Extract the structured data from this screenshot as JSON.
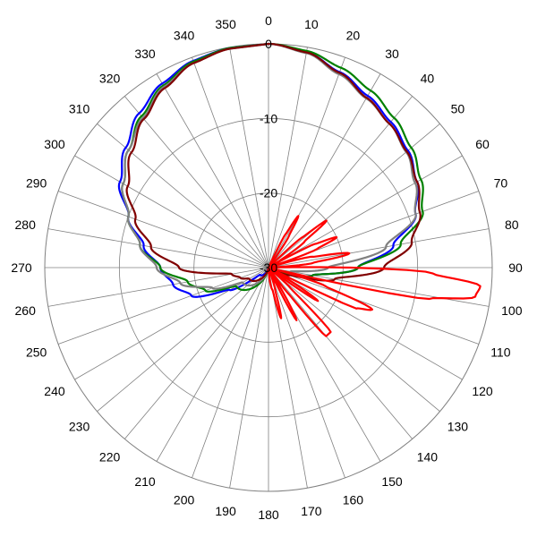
{
  "chart_data": {
    "type": "line",
    "coordinate_system": "polar",
    "angle_labels": [
      "0",
      "10",
      "20",
      "30",
      "40",
      "50",
      "60",
      "70",
      "80",
      "90",
      "100",
      "110",
      "120",
      "130",
      "140",
      "150",
      "160",
      "170",
      "180",
      "190",
      "200",
      "210",
      "220",
      "230",
      "240",
      "250",
      "260",
      "270",
      "280",
      "290",
      "300",
      "310",
      "320",
      "330",
      "340",
      "350"
    ],
    "radial_tick_labels": [
      "0",
      "-10",
      "-20",
      "-30"
    ],
    "radial_range": [
      -30,
      0
    ],
    "grid": true,
    "legend": "none",
    "series": [
      {
        "color": "#0000ff",
        "x": [
          0,
          10,
          20,
          30,
          40,
          50,
          60,
          70,
          80,
          90,
          100,
          110,
          120,
          180,
          230,
          240,
          250,
          260,
          270,
          280,
          290,
          300,
          310,
          320,
          330,
          340,
          350
        ],
        "y": [
          0,
          -0.7,
          -2.1,
          -3.4,
          -4.5,
          -5.6,
          -7,
          -9,
          -13,
          -18,
          -24,
          -28,
          -30,
          -30,
          -28.5,
          -24,
          -19,
          -17,
          -15.5,
          -13,
          -10,
          -7,
          -5,
          -3,
          -1.5,
          -0.5,
          -0.1
        ]
      },
      {
        "color": "#008000",
        "x": [
          0,
          10,
          20,
          30,
          40,
          50,
          60,
          70,
          80,
          90,
          100,
          110,
          120,
          180,
          240,
          250,
          260,
          270,
          280,
          290,
          300,
          310,
          320,
          330,
          340,
          350
        ],
        "y": [
          0,
          -0.5,
          -1.5,
          -2.6,
          -3.8,
          -5,
          -6.4,
          -8,
          -12,
          -18,
          -24,
          -28,
          -30,
          -30,
          -25,
          -21,
          -19,
          -15.5,
          -12.5,
          -10,
          -7.5,
          -5.5,
          -3.5,
          -1.8,
          -0.6,
          -0.1
        ]
      },
      {
        "color": "#808080",
        "x": [
          0,
          10,
          20,
          30,
          40,
          50,
          60,
          70,
          80,
          90,
          100,
          110,
          120,
          180,
          240,
          250,
          260,
          270,
          280,
          290,
          300,
          310,
          320,
          330,
          340,
          350
        ],
        "y": [
          0,
          -0.8,
          -2.4,
          -3.8,
          -4.8,
          -5.9,
          -7.3,
          -9,
          -14,
          -22,
          -27,
          -29,
          -30,
          -30,
          -26,
          -22,
          -18,
          -15,
          -12.5,
          -10,
          -7.5,
          -5.5,
          -3.8,
          -2,
          -0.8,
          -0.2
        ]
      },
      {
        "color": "#800000",
        "x": [
          0,
          10,
          20,
          30,
          40,
          50,
          60,
          70,
          80,
          90,
          100,
          110,
          120,
          180,
          240,
          250,
          260,
          270,
          280,
          290,
          300,
          310,
          320,
          330,
          340,
          350
        ],
        "y": [
          0,
          -0.7,
          -2.2,
          -3.7,
          -4.8,
          -5.8,
          -7,
          -8.4,
          -10.5,
          -14.5,
          -21,
          -27,
          -30,
          -30,
          -27,
          -26,
          -25,
          -18,
          -14,
          -11,
          -8.2,
          -6,
          -4,
          -2.2,
          -0.8,
          -0.2
        ]
      },
      {
        "color": "#ff0000",
        "x": [
          0,
          24,
          27,
          30,
          33,
          36,
          45,
          48,
          51,
          54,
          60,
          63,
          66,
          69,
          72,
          76,
          80,
          84,
          88,
          92,
          95,
          98,
          101,
          104,
          108,
          112,
          115,
          117,
          120,
          124,
          127,
          130,
          133,
          136,
          140,
          143,
          145,
          148,
          152,
          155,
          160,
          163,
          166,
          170,
          180
        ],
        "y": [
          -30,
          -30,
          -25,
          -22,
          -25,
          -30,
          -30,
          -24,
          -20,
          -24,
          -30,
          -23,
          -20,
          -23,
          -30,
          -24,
          -19,
          -24,
          -30,
          -8,
          -1.5,
          -2,
          -8,
          -30,
          -22,
          -15,
          -17,
          -30,
          -28,
          -22,
          -28,
          -30,
          -26,
          -18,
          -18,
          -26,
          -30,
          -28,
          -22,
          -28,
          -30,
          -27,
          -23,
          -27,
          -30
        ]
      }
    ]
  }
}
